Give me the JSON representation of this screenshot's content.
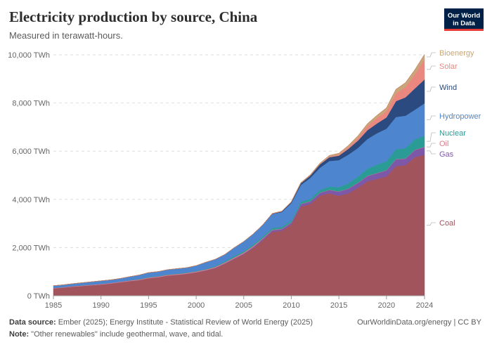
{
  "header": {
    "title": "Electricity production by source, China",
    "subtitle": "Measured in terawatt-hours.",
    "logo_line1": "Our World",
    "logo_line2": "in Data"
  },
  "footer": {
    "source_label": "Data source:",
    "source_text": "Ember (2025); Energy Institute - Statistical Review of World Energy (2025)",
    "note_label": "Note:",
    "note_text": "\"Other renewables\" include geothermal, wave, and tidal.",
    "right_text": "OurWorldinData.org/energy | CC BY"
  },
  "colors": {
    "coal": "#a2545d",
    "gas": "#7e58a8",
    "oil": "#d67a86",
    "nuclear": "#2a9c95",
    "hydropower": "#4d86cf",
    "wind": "#2b4a7f",
    "solar": "#ea8880",
    "bioenergy": "#c8a67a",
    "other_renewables": "#c47a5a"
  },
  "chart_data": {
    "type": "area",
    "stacked": true,
    "title": "Electricity production by source, China",
    "ylabel": "",
    "xlabel": "",
    "ylim": [
      0,
      10000
    ],
    "y_ticks": [
      0,
      2000,
      4000,
      6000,
      8000,
      10000
    ],
    "y_tick_labels": [
      "0 TWh",
      "2,000 TWh",
      "4,000 TWh",
      "6,000 TWh",
      "8,000 TWh",
      "10,000 TWh"
    ],
    "x_ticks": [
      1985,
      1990,
      1995,
      2000,
      2005,
      2010,
      2015,
      2020,
      2024
    ],
    "x_tick_labels": [
      "1985",
      "1990",
      "1995",
      "2000",
      "2005",
      "2010",
      "2015",
      "2020",
      "2024"
    ],
    "grid": true,
    "legend_placement": "right",
    "x": [
      1985,
      1986,
      1987,
      1988,
      1989,
      1990,
      1991,
      1992,
      1993,
      1994,
      1995,
      1996,
      1997,
      1998,
      1999,
      2000,
      2001,
      2002,
      2003,
      2004,
      2005,
      2006,
      2007,
      2008,
      2009,
      2010,
      2011,
      2012,
      2013,
      2014,
      2015,
      2016,
      2017,
      2018,
      2019,
      2020,
      2021,
      2022,
      2023,
      2024
    ],
    "series": [
      {
        "name": "Coal",
        "key": "coal",
        "values": [
          300,
          330,
          370,
          400,
          430,
          460,
          500,
          550,
          600,
          640,
          720,
          760,
          830,
          860,
          900,
          960,
          1040,
          1140,
          1320,
          1520,
          1720,
          1980,
          2300,
          2650,
          2700,
          2950,
          3700,
          3800,
          4150,
          4250,
          4150,
          4250,
          4480,
          4750,
          4850,
          4950,
          5380,
          5420,
          5750,
          5850
        ]
      },
      {
        "name": "Gas",
        "key": "gas",
        "values": [
          5,
          5,
          5,
          5,
          5,
          5,
          5,
          6,
          6,
          6,
          6,
          7,
          7,
          8,
          10,
          12,
          14,
          17,
          20,
          25,
          30,
          40,
          60,
          70,
          70,
          80,
          100,
          110,
          115,
          135,
          170,
          190,
          200,
          215,
          230,
          250,
          280,
          270,
          300,
          320
        ]
      },
      {
        "name": "Oil",
        "key": "oil",
        "values": [
          20,
          22,
          24,
          25,
          26,
          27,
          28,
          29,
          30,
          31,
          32,
          33,
          34,
          35,
          36,
          37,
          38,
          40,
          42,
          44,
          46,
          48,
          30,
          20,
          15,
          15,
          12,
          11,
          10,
          10,
          10,
          10,
          10,
          12,
          12,
          12,
          12,
          12,
          12,
          12
        ]
      },
      {
        "name": "Nuclear",
        "key": "nuclear",
        "values": [
          0,
          0,
          0,
          0,
          0,
          0,
          0,
          0,
          2,
          14,
          13,
          14,
          15,
          14,
          15,
          17,
          18,
          25,
          43,
          50,
          53,
          55,
          62,
          68,
          70,
          74,
          87,
          98,
          112,
          133,
          171,
          213,
          248,
          295,
          348,
          366,
          408,
          418,
          435,
          450
        ]
      },
      {
        "name": "Hydropower",
        "key": "hydropower",
        "values": [
          92,
          95,
          100,
          109,
          118,
          127,
          125,
          131,
          152,
          168,
          190,
          188,
          196,
          208,
          204,
          222,
          277,
          288,
          283,
          353,
          398,
          436,
          482,
          585,
          616,
          722,
          699,
          872,
          920,
          1064,
          1127,
          1193,
          1194,
          1232,
          1304,
          1355,
          1340,
          1352,
          1226,
          1354
        ]
      },
      {
        "name": "Wind",
        "key": "wind",
        "values": [
          0,
          0,
          0,
          0,
          0,
          0,
          0,
          0,
          0,
          0,
          0,
          0,
          0,
          0,
          0,
          1,
          1,
          1,
          1,
          1,
          2,
          4,
          6,
          13,
          27,
          45,
          70,
          96,
          141,
          156,
          186,
          241,
          305,
          366,
          406,
          467,
          656,
          762,
          886,
          991
        ]
      },
      {
        "name": "Solar",
        "key": "solar",
        "values": [
          0,
          0,
          0,
          0,
          0,
          0,
          0,
          0,
          0,
          0,
          0,
          0,
          0,
          0,
          0,
          0,
          0,
          0,
          0,
          0,
          0,
          0,
          0,
          0,
          0,
          1,
          3,
          6,
          15,
          29,
          45,
          75,
          118,
          177,
          224,
          261,
          327,
          428,
          584,
          834
        ]
      },
      {
        "name": "Bioenergy",
        "key": "bioenergy",
        "values": [
          0,
          0,
          0,
          0,
          0,
          0,
          0,
          0,
          0,
          0,
          0,
          0,
          0,
          0,
          0,
          2,
          2,
          3,
          3,
          4,
          5,
          6,
          7,
          10,
          14,
          18,
          23,
          30,
          37,
          44,
          53,
          65,
          79,
          91,
          112,
          136,
          165,
          180,
          195,
          205
        ]
      },
      {
        "name": "Other renewables",
        "key": "other_renewables",
        "values": [
          0,
          0,
          0,
          0,
          0,
          0,
          0,
          0,
          0,
          0,
          0,
          0,
          0,
          0,
          0,
          0,
          0,
          0,
          0,
          0,
          0,
          0,
          0,
          0,
          0,
          0,
          0,
          0,
          0,
          0,
          0,
          0,
          0,
          0,
          0,
          0,
          0,
          0,
          0,
          0
        ]
      }
    ],
    "legend": [
      {
        "name": "Bioenergy",
        "key": "bioenergy"
      },
      {
        "name": "Solar",
        "key": "solar"
      },
      {
        "name": "Wind",
        "key": "wind"
      },
      {
        "name": "Hydropower",
        "key": "hydropower"
      },
      {
        "name": "Nuclear",
        "key": "nuclear"
      },
      {
        "name": "Oil",
        "key": "oil"
      },
      {
        "name": "Gas",
        "key": "gas"
      },
      {
        "name": "Coal",
        "key": "coal"
      }
    ]
  }
}
